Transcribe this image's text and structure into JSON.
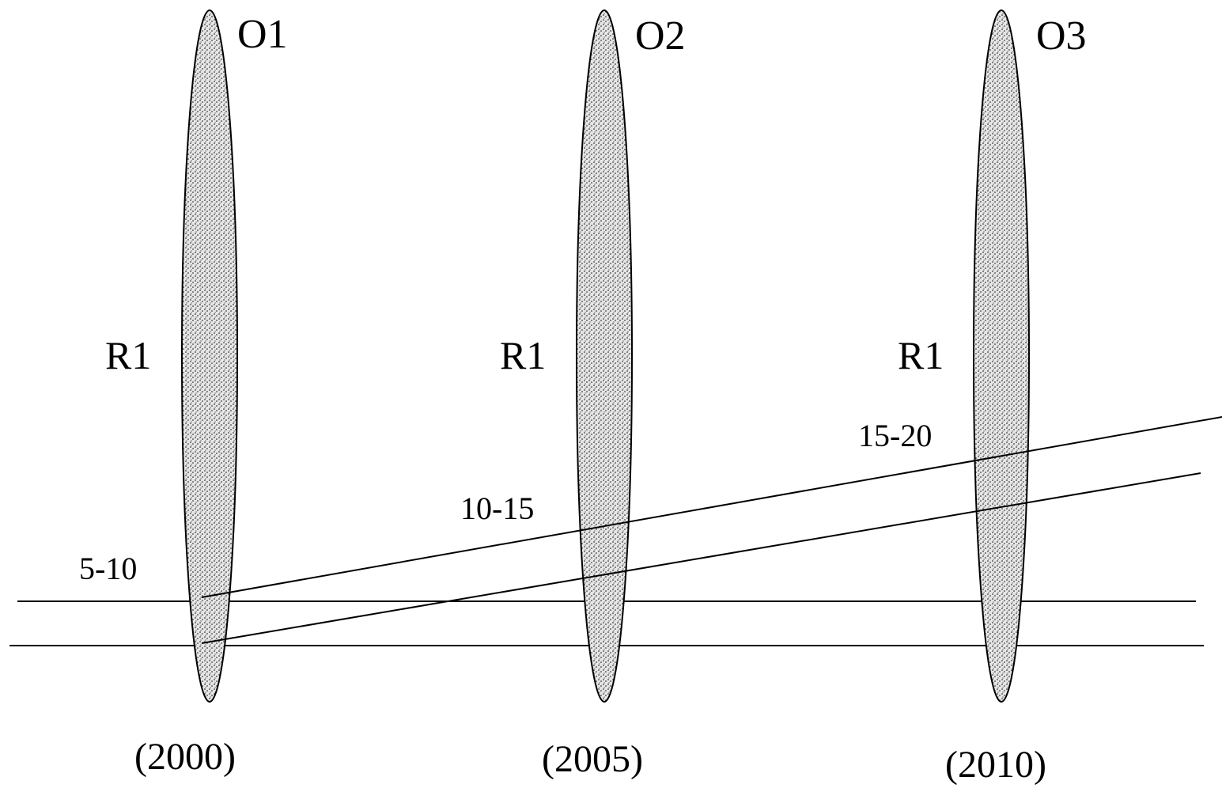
{
  "observations": [
    {
      "id": "O1",
      "region": "R1",
      "year": "(2000)"
    },
    {
      "id": "O2",
      "region": "R1",
      "year": "(2005)"
    },
    {
      "id": "O3",
      "region": "R1",
      "year": "(2010)"
    }
  ],
  "age_groups": [
    "5-10",
    "10-15",
    "15-20"
  ],
  "colors": {
    "stroke": "#000000",
    "ellipse_fill": "#e4e4e4",
    "stipple": "#1a1a1a"
  }
}
